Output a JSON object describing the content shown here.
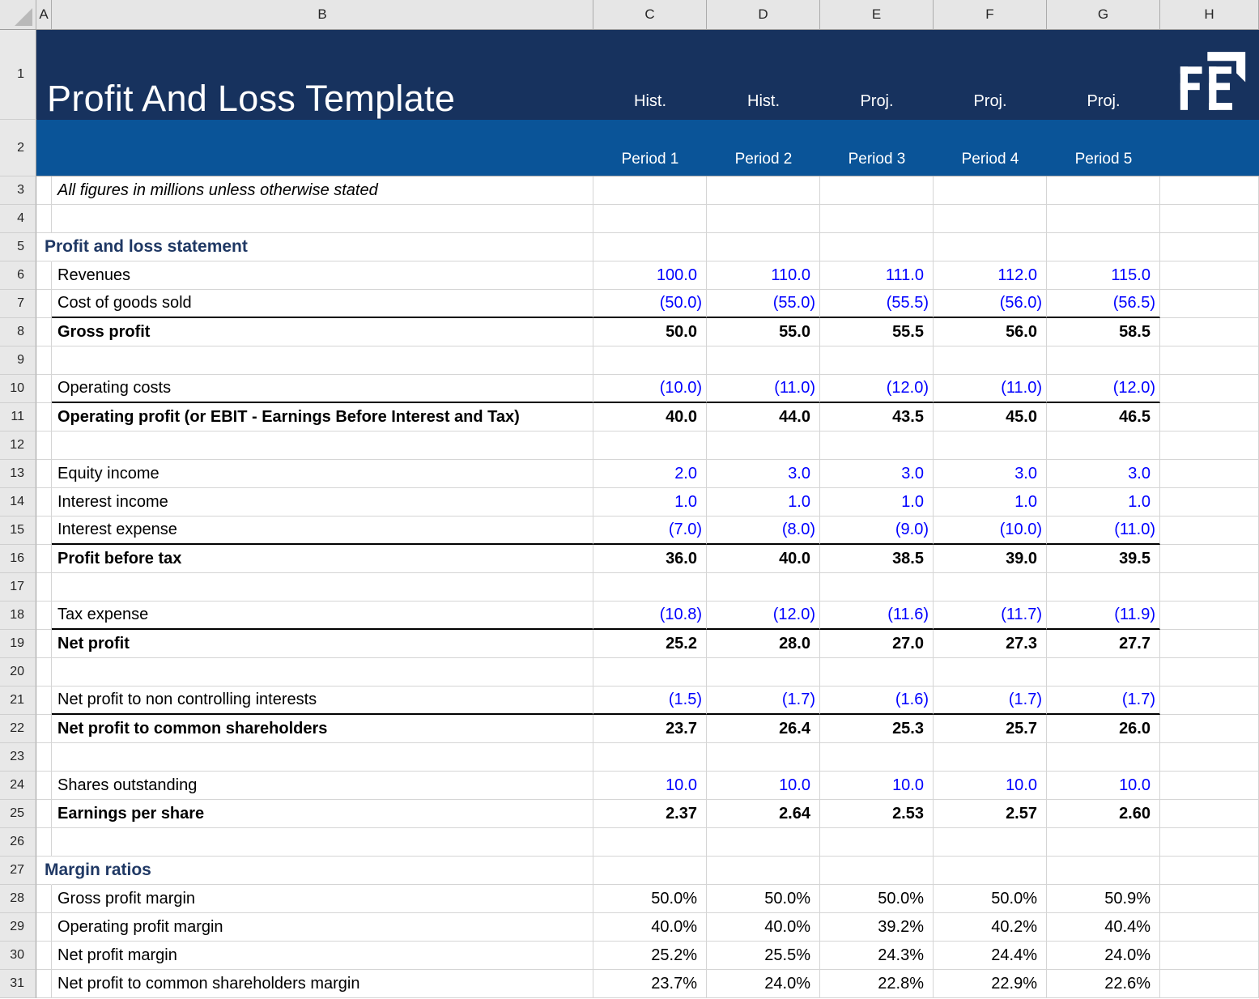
{
  "app": {
    "type": "spreadsheet"
  },
  "colors": {
    "banner_dark": "#17325E",
    "banner_blue": "#0A5498",
    "input_value_blue": "#0000FF",
    "section_heading": "#1F3864",
    "gridline": "#D5D5D5",
    "header_fill": "#E6E6E6",
    "gutter_fill": "#E8E8E8",
    "subtotal_border": "#000000"
  },
  "column_headers": [
    "A",
    "B",
    "C",
    "D",
    "E",
    "F",
    "G",
    "H"
  ],
  "banner": {
    "title": "Profit And Loss Template",
    "row_numbers": [
      "1",
      "2"
    ],
    "group_labels": [
      "Hist.",
      "Hist.",
      "Proj.",
      "Proj.",
      "Proj."
    ],
    "period_labels": [
      "Period 1",
      "Period 2",
      "Period 3",
      "Period 4",
      "Period 5"
    ],
    "logo": "FE"
  },
  "rows": [
    {
      "num": "3",
      "style": "note",
      "label": "All figures in millions unless otherwise stated",
      "values": [
        "",
        "",
        "",
        "",
        ""
      ],
      "border_bottom": false
    },
    {
      "num": "4",
      "style": "blank",
      "label": "",
      "values": [
        "",
        "",
        "",
        "",
        ""
      ],
      "border_bottom": false
    },
    {
      "num": "5",
      "style": "section",
      "label": "Profit and loss statement",
      "values": [
        "",
        "",
        "",
        "",
        ""
      ],
      "border_bottom": false
    },
    {
      "num": "6",
      "style": "input",
      "label": "Revenues",
      "values": [
        "100.0",
        "110.0",
        "111.0",
        "112.0",
        "115.0"
      ],
      "border_bottom": false
    },
    {
      "num": "7",
      "style": "input",
      "label": "Cost of goods sold",
      "values": [
        "(50.0)",
        "(55.0)",
        "(55.5)",
        "(56.0)",
        "(56.5)"
      ],
      "border_bottom": true
    },
    {
      "num": "8",
      "style": "total",
      "label": "Gross profit",
      "values": [
        "50.0",
        "55.0",
        "55.5",
        "56.0",
        "58.5"
      ],
      "border_bottom": false
    },
    {
      "num": "9",
      "style": "blank",
      "label": "",
      "values": [
        "",
        "",
        "",
        "",
        ""
      ],
      "border_bottom": false
    },
    {
      "num": "10",
      "style": "input",
      "label": "Operating costs",
      "values": [
        "(10.0)",
        "(11.0)",
        "(12.0)",
        "(11.0)",
        "(12.0)"
      ],
      "border_bottom": true
    },
    {
      "num": "11",
      "style": "total",
      "label": "Operating profit (or EBIT - Earnings Before Interest and Tax)",
      "values": [
        "40.0",
        "44.0",
        "43.5",
        "45.0",
        "46.5"
      ],
      "border_bottom": false
    },
    {
      "num": "12",
      "style": "blank",
      "label": "",
      "values": [
        "",
        "",
        "",
        "",
        ""
      ],
      "border_bottom": false
    },
    {
      "num": "13",
      "style": "input",
      "label": "Equity income",
      "values": [
        "2.0",
        "3.0",
        "3.0",
        "3.0",
        "3.0"
      ],
      "border_bottom": false
    },
    {
      "num": "14",
      "style": "input",
      "label": "Interest income",
      "values": [
        "1.0",
        "1.0",
        "1.0",
        "1.0",
        "1.0"
      ],
      "border_bottom": false
    },
    {
      "num": "15",
      "style": "input",
      "label": "Interest expense",
      "values": [
        "(7.0)",
        "(8.0)",
        "(9.0)",
        "(10.0)",
        "(11.0)"
      ],
      "border_bottom": true
    },
    {
      "num": "16",
      "style": "total",
      "label": "Profit before tax",
      "values": [
        "36.0",
        "40.0",
        "38.5",
        "39.0",
        "39.5"
      ],
      "border_bottom": false
    },
    {
      "num": "17",
      "style": "blank",
      "label": "",
      "values": [
        "",
        "",
        "",
        "",
        ""
      ],
      "border_bottom": false
    },
    {
      "num": "18",
      "style": "input",
      "label": "Tax expense",
      "values": [
        "(10.8)",
        "(12.0)",
        "(11.6)",
        "(11.7)",
        "(11.9)"
      ],
      "border_bottom": true
    },
    {
      "num": "19",
      "style": "total",
      "label": "Net profit",
      "values": [
        "25.2",
        "28.0",
        "27.0",
        "27.3",
        "27.7"
      ],
      "border_bottom": false
    },
    {
      "num": "20",
      "style": "blank",
      "label": "",
      "values": [
        "",
        "",
        "",
        "",
        ""
      ],
      "border_bottom": false
    },
    {
      "num": "21",
      "style": "input",
      "label": "Net profit to non controlling interests",
      "values": [
        "(1.5)",
        "(1.7)",
        "(1.6)",
        "(1.7)",
        "(1.7)"
      ],
      "border_bottom": true
    },
    {
      "num": "22",
      "style": "total",
      "label": "Net profit to common shareholders",
      "values": [
        "23.7",
        "26.4",
        "25.3",
        "25.7",
        "26.0"
      ],
      "border_bottom": false
    },
    {
      "num": "23",
      "style": "blank",
      "label": "",
      "values": [
        "",
        "",
        "",
        "",
        ""
      ],
      "border_bottom": false
    },
    {
      "num": "24",
      "style": "input",
      "label": "Shares outstanding",
      "values": [
        "10.0",
        "10.0",
        "10.0",
        "10.0",
        "10.0"
      ],
      "border_bottom": false
    },
    {
      "num": "25",
      "style": "total",
      "label": "Earnings per share",
      "values": [
        "2.37",
        "2.64",
        "2.53",
        "2.57",
        "2.60"
      ],
      "border_bottom": false
    },
    {
      "num": "26",
      "style": "blank",
      "label": "",
      "values": [
        "",
        "",
        "",
        "",
        ""
      ],
      "border_bottom": false
    },
    {
      "num": "27",
      "style": "section",
      "label": "Margin ratios",
      "values": [
        "",
        "",
        "",
        "",
        ""
      ],
      "border_bottom": false
    },
    {
      "num": "28",
      "style": "percent",
      "label": "Gross profit margin",
      "values": [
        "50.0%",
        "50.0%",
        "50.0%",
        "50.0%",
        "50.9%"
      ],
      "border_bottom": false
    },
    {
      "num": "29",
      "style": "percent",
      "label": "Operating profit margin",
      "values": [
        "40.0%",
        "40.0%",
        "39.2%",
        "40.2%",
        "40.4%"
      ],
      "border_bottom": false
    },
    {
      "num": "30",
      "style": "percent",
      "label": "Net profit margin",
      "values": [
        "25.2%",
        "25.5%",
        "24.3%",
        "24.4%",
        "24.0%"
      ],
      "border_bottom": false
    },
    {
      "num": "31",
      "style": "percent",
      "label": "Net profit to common shareholders margin",
      "values": [
        "23.7%",
        "24.0%",
        "22.8%",
        "22.9%",
        "22.6%"
      ],
      "border_bottom": false
    }
  ]
}
